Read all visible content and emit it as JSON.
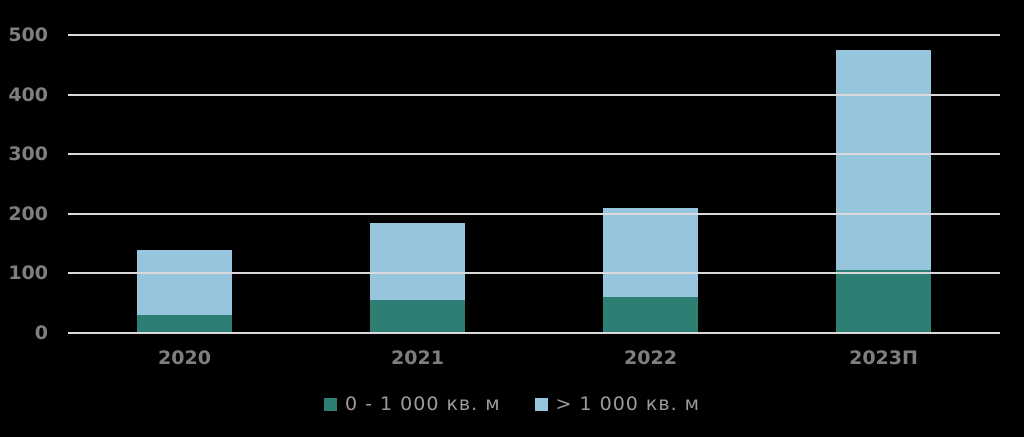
{
  "figure": {
    "background": "#000000"
  },
  "chart_data": {
    "type": "bar",
    "stacked": true,
    "title": "",
    "xlabel": "",
    "ylabel": "",
    "categories": [
      "2020",
      "2021",
      "2022",
      "2023П"
    ],
    "series": [
      {
        "name": "0 - 1 000 кв. м",
        "color": "#2D7E73",
        "values": [
          30,
          55,
          60,
          105
        ]
      },
      {
        "name": "> 1 000 кв. м",
        "color": "#97C5DE",
        "values": [
          110,
          130,
          150,
          370
        ]
      }
    ],
    "totals": [
      140,
      185,
      210,
      475
    ],
    "ylim": [
      0,
      500
    ],
    "yticks": [
      0,
      100,
      200,
      300,
      400,
      500
    ],
    "grid": true,
    "gridline_color": "#D9D9D9",
    "axis_label_color": "#7F7F7F",
    "legend_text_color": "#9A9A9A",
    "legend_position": "bottom"
  }
}
